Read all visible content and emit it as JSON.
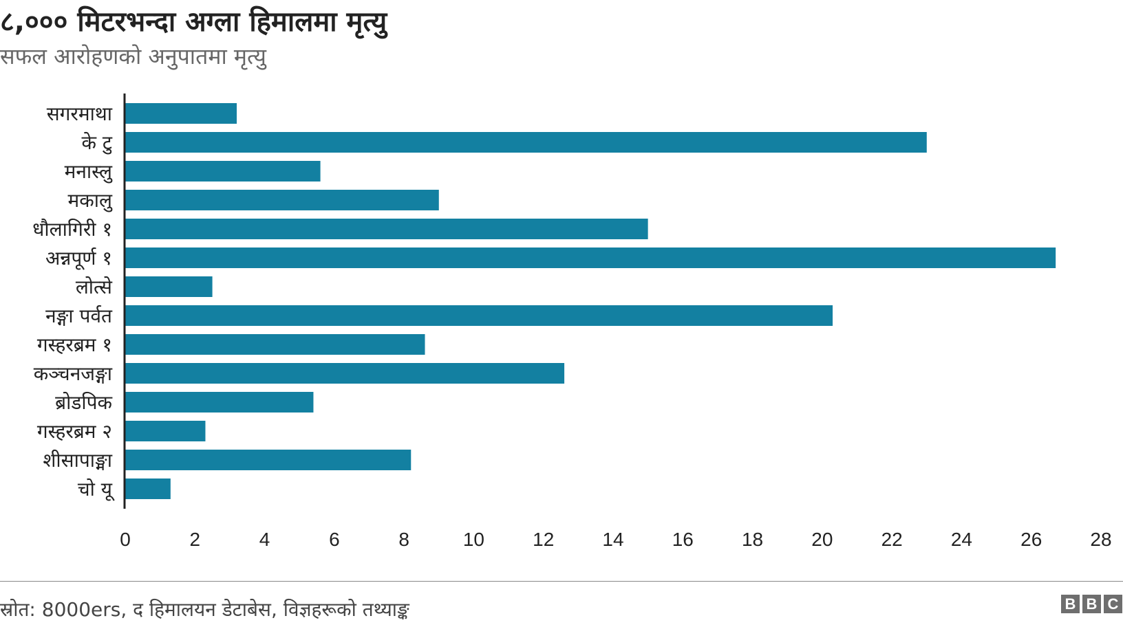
{
  "title": "८,००० मिटरभन्दा अग्ला हिमालमा मृत्यु",
  "subtitle": "सफल आरोहणको अनुपातमा मृत्यु",
  "source": "स्रोत: 8000ers, द हिमालयन डेटाबेस, विज्ञहरूको तथ्याङ्क",
  "logo": [
    "B",
    "B",
    "C"
  ],
  "chart_data": {
    "type": "bar",
    "orientation": "horizontal",
    "title": "८,००० मिटरभन्दा अग्ला हिमालमा मृत्यु",
    "subtitle": "सफल आरोहणको अनुपातमा मृत्यु",
    "categories": [
      "सगरमाथा",
      "के टु",
      "मनास्लु",
      "मकालु",
      "धौलागिरी १",
      "अन्नपूर्ण १",
      "लोत्से",
      "नङ्गा पर्वत",
      "गस्हरब्रम १",
      "कञ्चनजङ्गा",
      "ब्रोडपिक",
      "गस्हरब्रम २",
      "शीसापाङ्मा",
      "चो यू"
    ],
    "values": [
      3.2,
      23.0,
      5.6,
      9.0,
      15.0,
      26.7,
      2.5,
      20.3,
      8.6,
      12.6,
      5.4,
      2.3,
      8.2,
      1.3
    ],
    "xlim": [
      0,
      28
    ],
    "xticks": [
      0,
      2,
      4,
      6,
      8,
      10,
      12,
      14,
      16,
      18,
      20,
      22,
      24,
      26,
      28
    ],
    "bar_color": "#1380A1",
    "grid": false,
    "legend": "none"
  }
}
